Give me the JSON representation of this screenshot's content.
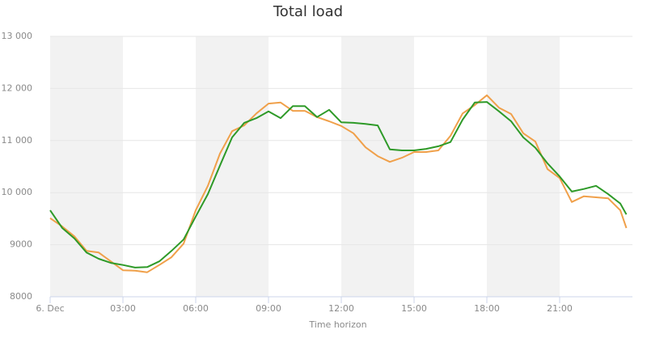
{
  "chart_data": {
    "type": "line",
    "title": "Total load",
    "x_label": "Time horizon",
    "xlim": [
      0,
      24
    ],
    "xticks": [
      {
        "value": 0,
        "label": "6. Dec"
      },
      {
        "value": 3,
        "label": "03:00"
      },
      {
        "value": 6,
        "label": "06:00"
      },
      {
        "value": 9,
        "label": "09:00"
      },
      {
        "value": 12,
        "label": "12:00"
      },
      {
        "value": 15,
        "label": "15:00"
      },
      {
        "value": 18,
        "label": "18:00"
      },
      {
        "value": 21,
        "label": "21:00"
      }
    ],
    "ylim": [
      8000,
      13000
    ],
    "yticks": [
      8000,
      9000,
      {
        "value": 10000,
        "label": "10 000"
      },
      {
        "value": 11000,
        "label": "11 000"
      },
      {
        "value": 12000,
        "label": "12 000"
      },
      {
        "value": 13000,
        "label": "13 000"
      }
    ],
    "grid": true,
    "plot_bands": [
      [
        0,
        3
      ],
      [
        6,
        9
      ],
      [
        12,
        15
      ],
      [
        18,
        21
      ]
    ],
    "plot_band_color": "#f2f2f2",
    "x": [
      0,
      0.5,
      1,
      1.5,
      2,
      2.5,
      3,
      3.5,
      4,
      4.5,
      5,
      5.5,
      6,
      6.5,
      7,
      7.5,
      8,
      8.5,
      9,
      9.5,
      10,
      10.5,
      11,
      11.5,
      12,
      12.5,
      13,
      13.5,
      14,
      14.5,
      15,
      15.5,
      16,
      16.5,
      17,
      17.5,
      18,
      18.5,
      19,
      19.5,
      20,
      20.5,
      21,
      21.5,
      22,
      22.5,
      23,
      23.5,
      23.75
    ],
    "series": [
      {
        "color": "#f0a04a",
        "values": [
          9510,
          9350,
          9160,
          8880,
          8850,
          8680,
          8510,
          8500,
          8470,
          8610,
          8760,
          9020,
          9660,
          10130,
          10750,
          11180,
          11290,
          11520,
          11710,
          11730,
          11570,
          11570,
          11450,
          11370,
          11280,
          11140,
          10870,
          10700,
          10590,
          10670,
          10780,
          10780,
          10810,
          11090,
          11520,
          11680,
          11870,
          11630,
          11510,
          11140,
          10980,
          10450,
          10280,
          9820,
          9930,
          9910,
          9890,
          9660,
          9320
        ]
      },
      {
        "color": "#2e9a28",
        "values": [
          9660,
          9320,
          9120,
          8850,
          8730,
          8650,
          8610,
          8560,
          8570,
          8680,
          8880,
          9100,
          9540,
          9970,
          10520,
          11060,
          11340,
          11430,
          11560,
          11430,
          11660,
          11660,
          11450,
          11590,
          11350,
          11340,
          11320,
          11290,
          10830,
          10810,
          10810,
          10840,
          10890,
          10970,
          11400,
          11730,
          11740,
          11560,
          11370,
          11060,
          10860,
          10560,
          10310,
          10020,
          10070,
          10130,
          9970,
          9790,
          9580
        ]
      }
    ]
  }
}
